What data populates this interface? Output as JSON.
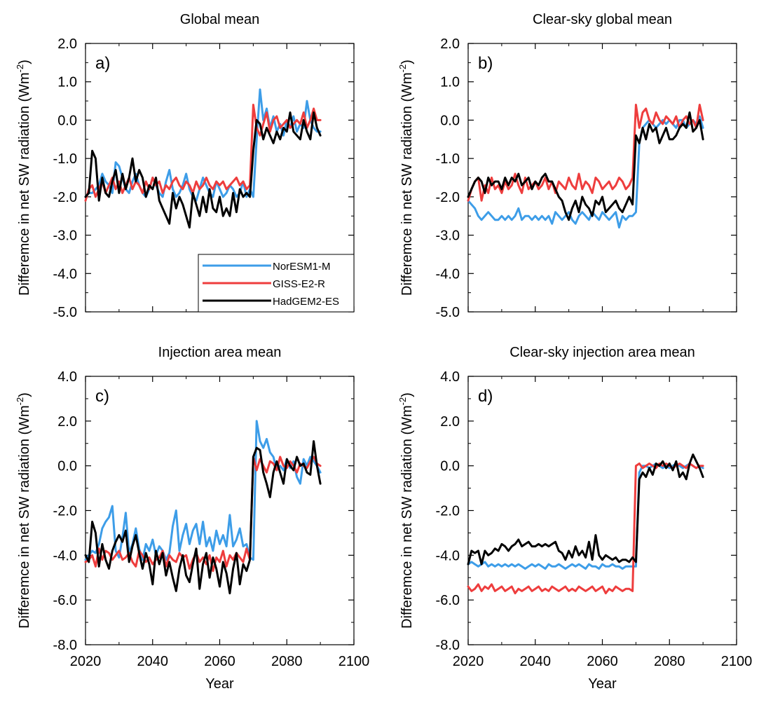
{
  "figure": {
    "series_names": [
      "NorESM1-M",
      "GISS-E2-R",
      "HadGEM2-ES"
    ],
    "colors": {
      "NorESM1-M": "#3d9de8",
      "GISS-E2-R": "#ee3d3d",
      "HadGEM2-ES": "#000000"
    }
  },
  "chart_data": [
    {
      "type": "line",
      "panel": "a)",
      "title": "Global mean",
      "xlabel": "Year",
      "ylabel_text": "Differemce in net SW radiation (Wm",
      "ylabel_sup": "-2",
      "ylabel_close": ")",
      "xlim": [
        2020,
        2100
      ],
      "ylim": [
        -5.0,
        2.0
      ],
      "xticks": [
        2020,
        2040,
        2060,
        2080,
        2100
      ],
      "yticks": [
        2.0,
        1.0,
        0.0,
        -1.0,
        -2.0,
        -3.0,
        -4.0,
        -5.0
      ],
      "ytick_labels": [
        "2.0",
        "1.0",
        "0.0",
        "-1.0",
        "-2.0",
        "-3.0",
        "-4.0",
        "-5.0"
      ],
      "legend": {
        "placement": "bottom-right",
        "entries": [
          "NorESM1-M",
          "GISS-E2-R",
          "HadGEM2-ES"
        ]
      },
      "x_start": 2020,
      "series": [
        {
          "name": "NorESM1-M",
          "values": [
            -2.0,
            -1.9,
            -1.9,
            -1.8,
            -1.7,
            -1.4,
            -1.6,
            -1.7,
            -1.9,
            -1.1,
            -1.2,
            -1.5,
            -1.8,
            -1.9,
            -1.6,
            -1.4,
            -1.7,
            -1.9,
            -2.0,
            -1.8,
            -1.5,
            -1.7,
            -1.9,
            -2.0,
            -1.6,
            -1.3,
            -1.8,
            -2.0,
            -1.9,
            -1.7,
            -1.4,
            -1.8,
            -2.0,
            -2.1,
            -1.8,
            -1.5,
            -1.7,
            -1.9,
            -2.0,
            -1.6,
            -1.8,
            -2.0,
            -1.9,
            -1.7,
            -1.8,
            -2.0,
            -1.9,
            -1.6,
            -2.0,
            -1.8,
            -2.0,
            -0.5,
            0.8,
            0.0,
            0.3,
            -0.2,
            0.1,
            -0.3,
            -0.1,
            -0.4,
            0.0,
            -0.2,
            0.1,
            -0.3,
            -0.1,
            -0.2,
            0.5,
            0.0,
            -0.2,
            -0.3,
            -0.3
          ]
        },
        {
          "name": "GISS-E2-R",
          "values": [
            -2.1,
            -1.8,
            -1.7,
            -2.0,
            -1.8,
            -1.6,
            -1.9,
            -1.7,
            -1.5,
            -1.8,
            -1.6,
            -1.9,
            -1.7,
            -1.5,
            -1.8,
            -1.6,
            -1.7,
            -1.9,
            -1.6,
            -1.8,
            -1.5,
            -1.7,
            -1.6,
            -1.9,
            -1.7,
            -1.8,
            -1.6,
            -1.5,
            -1.7,
            -1.8,
            -1.6,
            -1.7,
            -1.9,
            -1.6,
            -1.8,
            -1.7,
            -1.5,
            -1.7,
            -1.8,
            -1.6,
            -1.7,
            -1.6,
            -1.8,
            -1.7,
            -1.6,
            -1.5,
            -1.7,
            -1.6,
            -1.8,
            -1.7,
            0.4,
            -0.2,
            -0.4,
            -0.1,
            0.2,
            -0.3,
            0.0,
            0.1,
            -0.2,
            -0.1,
            0.0,
            -0.2,
            -0.1,
            0.0,
            -0.1,
            0.2,
            -0.2,
            0.0,
            0.3,
            0.0,
            0.0
          ]
        },
        {
          "name": "HadGEM2-ES",
          "values": [
            -2.0,
            -1.9,
            -0.8,
            -1.0,
            -2.1,
            -1.5,
            -1.9,
            -2.0,
            -1.6,
            -1.3,
            -1.9,
            -1.4,
            -1.8,
            -1.5,
            -1.0,
            -1.6,
            -1.3,
            -1.5,
            -2.0,
            -1.7,
            -1.8,
            -1.5,
            -2.1,
            -2.3,
            -2.5,
            -2.7,
            -1.9,
            -2.3,
            -2.0,
            -2.2,
            -2.5,
            -2.8,
            -1.9,
            -2.2,
            -2.5,
            -2.0,
            -2.4,
            -1.8,
            -2.3,
            -2.4,
            -2.0,
            -2.5,
            -2.3,
            -2.5,
            -1.9,
            -2.4,
            -1.8,
            -2.0,
            -1.9,
            -2.0,
            -0.8,
            0.0,
            -0.1,
            -0.5,
            -0.2,
            -0.4,
            -0.6,
            -0.3,
            -0.5,
            -0.2,
            -0.3,
            0.2,
            -0.3,
            -0.4,
            -0.5,
            0.0,
            -0.3,
            -0.5,
            0.2,
            -0.2,
            -0.4
          ]
        }
      ]
    },
    {
      "type": "line",
      "panel": "b)",
      "title": "Clear-sky global mean",
      "xlabel": "Year",
      "ylabel_text": "Differemce in net SW radiation (Wm",
      "ylabel_sup": "-2",
      "ylabel_close": ")",
      "xlim": [
        2020,
        2100
      ],
      "ylim": [
        -5.0,
        2.0
      ],
      "xticks": [
        2020,
        2040,
        2060,
        2080,
        2100
      ],
      "yticks": [
        2.0,
        1.0,
        0.0,
        -1.0,
        -2.0,
        -3.0,
        -4.0,
        -5.0
      ],
      "ytick_labels": [
        "2.0",
        "1.0",
        "0.0",
        "-1.0",
        "-2.0",
        "-3.0",
        "-4.0",
        "-5.0"
      ],
      "x_start": 2020,
      "series": [
        {
          "name": "NorESM1-M",
          "values": [
            -2.1,
            -2.2,
            -2.3,
            -2.5,
            -2.6,
            -2.5,
            -2.4,
            -2.5,
            -2.6,
            -2.6,
            -2.5,
            -2.6,
            -2.5,
            -2.6,
            -2.5,
            -2.3,
            -2.6,
            -2.5,
            -2.5,
            -2.6,
            -2.5,
            -2.6,
            -2.5,
            -2.6,
            -2.5,
            -2.7,
            -2.4,
            -2.5,
            -2.6,
            -2.5,
            -2.4,
            -2.6,
            -2.7,
            -2.5,
            -2.4,
            -2.5,
            -2.6,
            -2.4,
            -2.5,
            -2.6,
            -2.4,
            -2.5,
            -2.6,
            -2.5,
            -2.4,
            -2.8,
            -2.5,
            -2.6,
            -2.5,
            -2.5,
            -2.4,
            -0.6,
            -0.2,
            -0.1,
            0.0,
            -0.1,
            -0.2,
            -0.1,
            0.0,
            -0.1,
            0.0,
            -0.1,
            -0.2,
            0.0,
            0.0,
            -0.2,
            -0.1,
            0.0,
            -0.1,
            0.1,
            -0.2
          ]
        },
        {
          "name": "GISS-E2-R",
          "values": [
            -2.1,
            -1.8,
            -1.6,
            -1.5,
            -2.1,
            -1.7,
            -1.9,
            -1.5,
            -1.8,
            -1.7,
            -1.9,
            -1.6,
            -1.8,
            -1.7,
            -1.4,
            -1.7,
            -1.9,
            -1.5,
            -1.8,
            -1.7,
            -1.6,
            -1.8,
            -1.7,
            -1.5,
            -1.8,
            -1.6,
            -1.9,
            -1.6,
            -1.7,
            -1.8,
            -1.5,
            -1.7,
            -1.8,
            -1.4,
            -1.8,
            -1.6,
            -1.7,
            -1.9,
            -1.5,
            -1.6,
            -1.8,
            -1.7,
            -1.6,
            -1.8,
            -1.7,
            -1.5,
            -1.6,
            -1.8,
            -1.7,
            -1.5,
            0.4,
            -0.2,
            0.2,
            0.3,
            0.0,
            -0.1,
            0.2,
            0.0,
            -0.1,
            0.1,
            0.0,
            -0.1,
            0.1,
            -0.2,
            0.0,
            0.1,
            -0.1,
            0.0,
            -0.2,
            0.4,
            0.0
          ]
        },
        {
          "name": "HadGEM2-ES",
          "values": [
            -2.0,
            -1.8,
            -1.6,
            -1.5,
            -1.6,
            -1.9,
            -1.5,
            -1.7,
            -1.6,
            -1.6,
            -1.8,
            -1.5,
            -1.7,
            -1.5,
            -1.6,
            -1.4,
            -1.7,
            -1.6,
            -1.5,
            -1.8,
            -1.6,
            -1.7,
            -1.5,
            -1.4,
            -1.6,
            -1.6,
            -1.8,
            -2.0,
            -2.1,
            -2.4,
            -2.6,
            -2.3,
            -2.1,
            -2.4,
            -2.0,
            -2.2,
            -2.3,
            -2.5,
            -2.1,
            -2.2,
            -2.0,
            -2.4,
            -2.3,
            -2.2,
            -2.1,
            -2.3,
            -2.4,
            -2.2,
            -2.0,
            -2.2,
            -0.4,
            -0.6,
            -0.2,
            -0.5,
            -0.1,
            -0.3,
            -0.2,
            -0.6,
            -0.4,
            -0.2,
            -0.5,
            -0.5,
            -0.4,
            -0.2,
            -0.1,
            -0.2,
            0.2,
            -0.3,
            -0.2,
            0.0,
            -0.5
          ]
        }
      ]
    },
    {
      "type": "line",
      "panel": "c)",
      "title": "Injection area mean",
      "xlabel": "Year",
      "ylabel_text": "Differemce in net SW radiation (Wm",
      "ylabel_sup": "-2",
      "ylabel_close": ")",
      "xlim": [
        2020,
        2100
      ],
      "ylim": [
        -8.0,
        4.0
      ],
      "xticks": [
        2020,
        2040,
        2060,
        2080,
        2100
      ],
      "yticks": [
        4.0,
        2.0,
        0.0,
        -2.0,
        -4.0,
        -6.0,
        -8.0
      ],
      "ytick_labels": [
        "4.0",
        "2.0",
        "0.0",
        "-2.0",
        "-4.0",
        "-6.0",
        "-8.0"
      ],
      "x_start": 2020,
      "series": [
        {
          "name": "NorESM1-M",
          "values": [
            -4.2,
            -4.0,
            -3.8,
            -3.9,
            -3.5,
            -2.8,
            -2.5,
            -2.3,
            -1.8,
            -3.8,
            -4.1,
            -3.2,
            -2.1,
            -3.9,
            -3.5,
            -2.8,
            -3.7,
            -4.2,
            -3.5,
            -3.8,
            -3.3,
            -4.0,
            -3.6,
            -3.8,
            -4.2,
            -3.9,
            -2.7,
            -2.0,
            -3.8,
            -3.1,
            -2.6,
            -3.5,
            -2.9,
            -2.6,
            -3.5,
            -2.5,
            -3.6,
            -3.2,
            -3.8,
            -2.9,
            -3.5,
            -3.1,
            -3.6,
            -2.2,
            -3.6,
            -3.3,
            -2.8,
            -3.6,
            -3.5,
            -4.1,
            -4.2,
            2.0,
            1.1,
            0.8,
            1.2,
            0.6,
            0.4,
            -0.2,
            0.0,
            -0.2,
            0.3,
            -0.1,
            0.2,
            -0.5,
            -0.8,
            0.3,
            0.0,
            0.4,
            0.2,
            0.0,
            -0.3
          ]
        },
        {
          "name": "GISS-E2-R",
          "values": [
            -4.3,
            -4.2,
            -4.0,
            -4.5,
            -3.7,
            -4.2,
            -3.8,
            -3.9,
            -4.2,
            -4.0,
            -3.8,
            -4.2,
            -4.1,
            -3.9,
            -4.3,
            -4.5,
            -3.8,
            -4.0,
            -4.3,
            -4.1,
            -4.4,
            -4.2,
            -4.1,
            -3.8,
            -4.5,
            -4.0,
            -4.2,
            -4.3,
            -3.9,
            -4.1,
            -4.0,
            -4.6,
            -4.2,
            -3.9,
            -4.3,
            -4.1,
            -4.4,
            -4.0,
            -4.7,
            -4.1,
            -4.3,
            -3.8,
            -4.5,
            -4.0,
            -4.2,
            -3.9,
            -4.1,
            -4.3,
            -3.7,
            -4.2,
            0.4,
            -0.2,
            0.3,
            0.0,
            -0.3,
            0.2,
            0.1,
            -0.2,
            0.4,
            0.0,
            -0.1,
            0.2,
            0.0,
            -0.3,
            0.1,
            0.0,
            -0.1,
            0.2,
            0.4,
            0.1,
            0.0
          ]
        },
        {
          "name": "HadGEM2-ES",
          "values": [
            -4.0,
            -4.3,
            -2.5,
            -3.0,
            -4.5,
            -3.5,
            -4.2,
            -4.6,
            -3.8,
            -3.4,
            -3.1,
            -3.4,
            -2.9,
            -4.3,
            -3.6,
            -3.1,
            -3.9,
            -4.6,
            -3.9,
            -4.4,
            -5.3,
            -3.8,
            -4.4,
            -3.9,
            -4.9,
            -4.3,
            -5.0,
            -5.6,
            -4.6,
            -4.0,
            -4.9,
            -5.2,
            -4.4,
            -3.7,
            -5.5,
            -4.4,
            -3.9,
            -5.0,
            -4.1,
            -4.6,
            -5.4,
            -4.3,
            -4.8,
            -5.7,
            -4.6,
            -3.9,
            -5.3,
            -4.4,
            -4.7,
            -4.2,
            0.4,
            0.8,
            0.7,
            -0.3,
            -0.8,
            -1.4,
            -0.3,
            0.2,
            -0.3,
            -0.8,
            0.3,
            0.0,
            -0.2,
            0.4,
            0.0,
            0.1,
            -0.3,
            -0.4,
            1.1,
            0.0,
            -0.8
          ]
        }
      ]
    },
    {
      "type": "line",
      "panel": "d)",
      "title": "Clear-sky injection area mean",
      "xlabel": "Year",
      "ylabel_text": "Differemce in net SW radiation (Wm",
      "ylabel_sup": "-2",
      "ylabel_close": ")",
      "xlim": [
        2020,
        2100
      ],
      "ylim": [
        -8.0,
        4.0
      ],
      "xticks": [
        2020,
        2040,
        2060,
        2080,
        2100
      ],
      "yticks": [
        4.0,
        2.0,
        0.0,
        -2.0,
        -4.0,
        -6.0,
        -8.0
      ],
      "ytick_labels": [
        "4.0",
        "2.0",
        "0.0",
        "-2.0",
        "-4.0",
        "-6.0",
        "-8.0"
      ],
      "x_start": 2020,
      "series": [
        {
          "name": "NorESM1-M",
          "values": [
            -4.4,
            -4.3,
            -4.4,
            -4.5,
            -4.4,
            -4.3,
            -4.5,
            -4.4,
            -4.5,
            -4.4,
            -4.5,
            -4.4,
            -4.5,
            -4.4,
            -4.5,
            -4.4,
            -4.5,
            -4.6,
            -4.5,
            -4.4,
            -4.5,
            -4.4,
            -4.5,
            -4.6,
            -4.4,
            -4.5,
            -4.5,
            -4.4,
            -4.5,
            -4.6,
            -4.5,
            -4.4,
            -4.5,
            -4.4,
            -4.5,
            -4.6,
            -4.4,
            -4.5,
            -4.5,
            -4.6,
            -4.4,
            -4.5,
            -4.5,
            -4.4,
            -4.5,
            -4.5,
            -4.6,
            -4.5,
            -4.5,
            -4.5,
            -4.5,
            -0.3,
            0.0,
            0.0,
            -0.1,
            0.0,
            0.1,
            0.0,
            -0.1,
            0.0,
            -0.1,
            0.0,
            0.1,
            0.0,
            -0.1,
            0.0,
            0.1,
            0.0,
            -0.1,
            0.0,
            -0.1
          ]
        },
        {
          "name": "GISS-E2-R",
          "values": [
            -5.4,
            -5.6,
            -5.5,
            -5.3,
            -5.6,
            -5.4,
            -5.5,
            -5.3,
            -5.6,
            -5.5,
            -5.4,
            -5.6,
            -5.5,
            -5.4,
            -5.7,
            -5.5,
            -5.6,
            -5.5,
            -5.4,
            -5.6,
            -5.5,
            -5.4,
            -5.6,
            -5.5,
            -5.6,
            -5.4,
            -5.5,
            -5.6,
            -5.5,
            -5.4,
            -5.6,
            -5.5,
            -5.6,
            -5.4,
            -5.5,
            -5.6,
            -5.5,
            -5.4,
            -5.6,
            -5.5,
            -5.4,
            -5.7,
            -5.5,
            -5.6,
            -5.4,
            -5.5,
            -5.6,
            -5.5,
            -5.5,
            -5.6,
            0.0,
            0.1,
            -0.1,
            0.0,
            0.1,
            0.0,
            -0.1,
            0.1,
            0.0,
            0.1,
            0.0,
            -0.1,
            0.0,
            0.1,
            0.0,
            -0.1,
            0.1,
            0.0,
            -0.1,
            0.0,
            0.0
          ]
        },
        {
          "name": "HadGEM2-ES",
          "values": [
            -4.4,
            -3.8,
            -3.9,
            -3.8,
            -4.4,
            -3.8,
            -4.0,
            -3.9,
            -3.7,
            -3.8,
            -3.5,
            -3.6,
            -3.8,
            -3.6,
            -3.5,
            -3.3,
            -3.6,
            -3.5,
            -3.4,
            -3.6,
            -3.6,
            -3.5,
            -3.6,
            -3.5,
            -3.6,
            -3.5,
            -3.4,
            -3.8,
            -3.9,
            -4.2,
            -3.8,
            -4.1,
            -3.6,
            -4.0,
            -3.8,
            -4.1,
            -3.4,
            -4.2,
            -3.1,
            -4.0,
            -4.2,
            -4.0,
            -4.1,
            -4.2,
            -4.1,
            -4.3,
            -4.2,
            -4.2,
            -4.3,
            -4.1,
            -4.3,
            -0.6,
            -0.3,
            -0.5,
            -0.1,
            -0.4,
            0.1,
            0.0,
            0.2,
            -0.1,
            0.1,
            -0.2,
            0.2,
            -0.5,
            -0.3,
            -0.6,
            0.1,
            0.5,
            0.2,
            -0.1,
            -0.5
          ]
        }
      ]
    }
  ]
}
